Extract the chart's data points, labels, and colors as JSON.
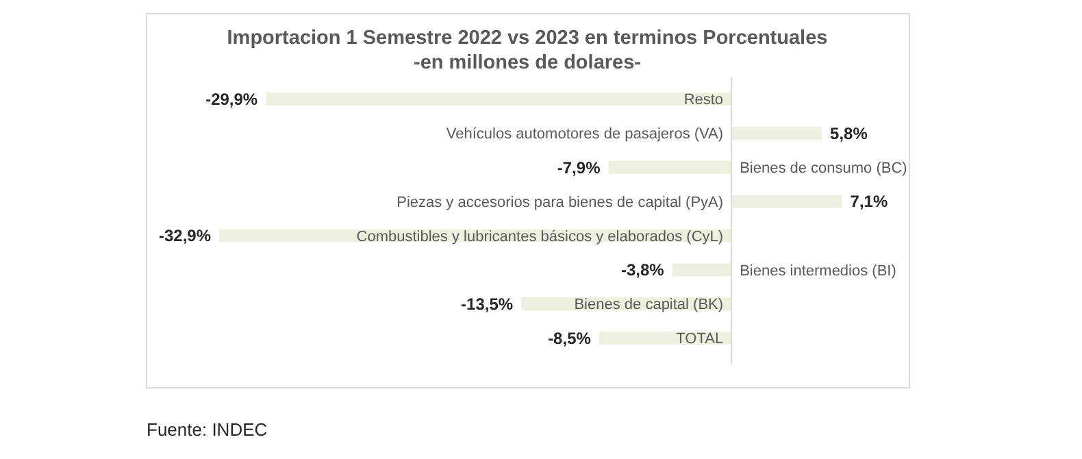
{
  "chart_data": {
    "type": "bar",
    "orientation": "horizontal",
    "title": "Importacion 1 Semestre 2022 vs 2023 en terminos Porcentuales",
    "subtitle": "-en millones de dolares-",
    "categories": [
      "Resto",
      "Vehículos automotores de pasajeros (VA)",
      "Bienes de consumo (BC)",
      "Piezas y accesorios para bienes de capital (PyA)",
      "Combustibles y lubricantes básicos y elaborados (CyL)",
      "Bienes intermedios (BI)",
      "Bienes de capital (BK)",
      "TOTAL"
    ],
    "values": [
      -29.9,
      5.8,
      -7.9,
      7.1,
      -32.9,
      -3.8,
      -13.5,
      -8.5
    ],
    "value_labels": [
      "-29,9%",
      "5,8%",
      "-7,9%",
      "7,1%",
      "-32,9%",
      "-3,8%",
      "-13,5%",
      "-8,5%"
    ],
    "color": "#eef0df",
    "annotations": [
      "Fuente: INDEC"
    ]
  }
}
